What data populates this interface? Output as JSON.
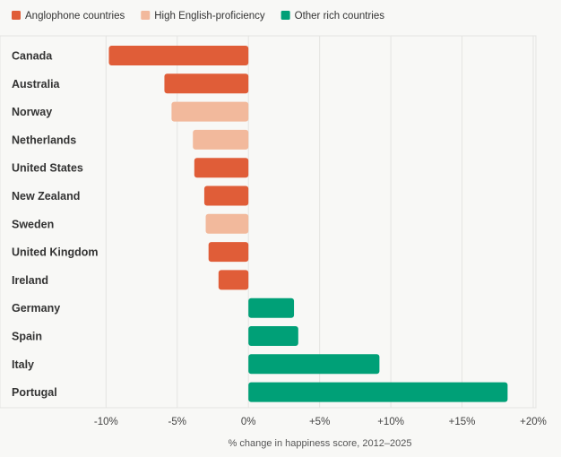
{
  "chart_data": {
    "type": "bar",
    "orientation": "horizontal",
    "title": "",
    "xlabel": "% change in happiness score, 2012–2025",
    "ylabel": "",
    "xlim": [
      -10,
      20
    ],
    "xticks": [
      -10,
      -5,
      0,
      5,
      10,
      15,
      20
    ],
    "xtick_labels": [
      "-10%",
      "-5%",
      "0%",
      "+5%",
      "+10%",
      "+15%",
      "+20%"
    ],
    "grid": true,
    "legend_position": "top-left",
    "legend": [
      {
        "name": "Anglophone countries",
        "color": "#e05d38"
      },
      {
        "name": "High English-proficiency",
        "color": "#f2b99c"
      },
      {
        "name": "Other rich countries",
        "color": "#00a077"
      }
    ],
    "categories": [
      "Canada",
      "Australia",
      "Norway",
      "Netherlands",
      "United States",
      "New Zealand",
      "Sweden",
      "United Kingdom",
      "Ireland",
      "Germany",
      "Spain",
      "Italy",
      "Portugal"
    ],
    "values": [
      -9.8,
      -5.9,
      -5.4,
      -3.9,
      -3.8,
      -3.1,
      -3.0,
      -2.8,
      -2.1,
      3.2,
      3.5,
      9.2,
      18.2
    ],
    "groups": [
      0,
      0,
      1,
      1,
      0,
      0,
      1,
      0,
      0,
      2,
      2,
      2,
      2
    ]
  }
}
